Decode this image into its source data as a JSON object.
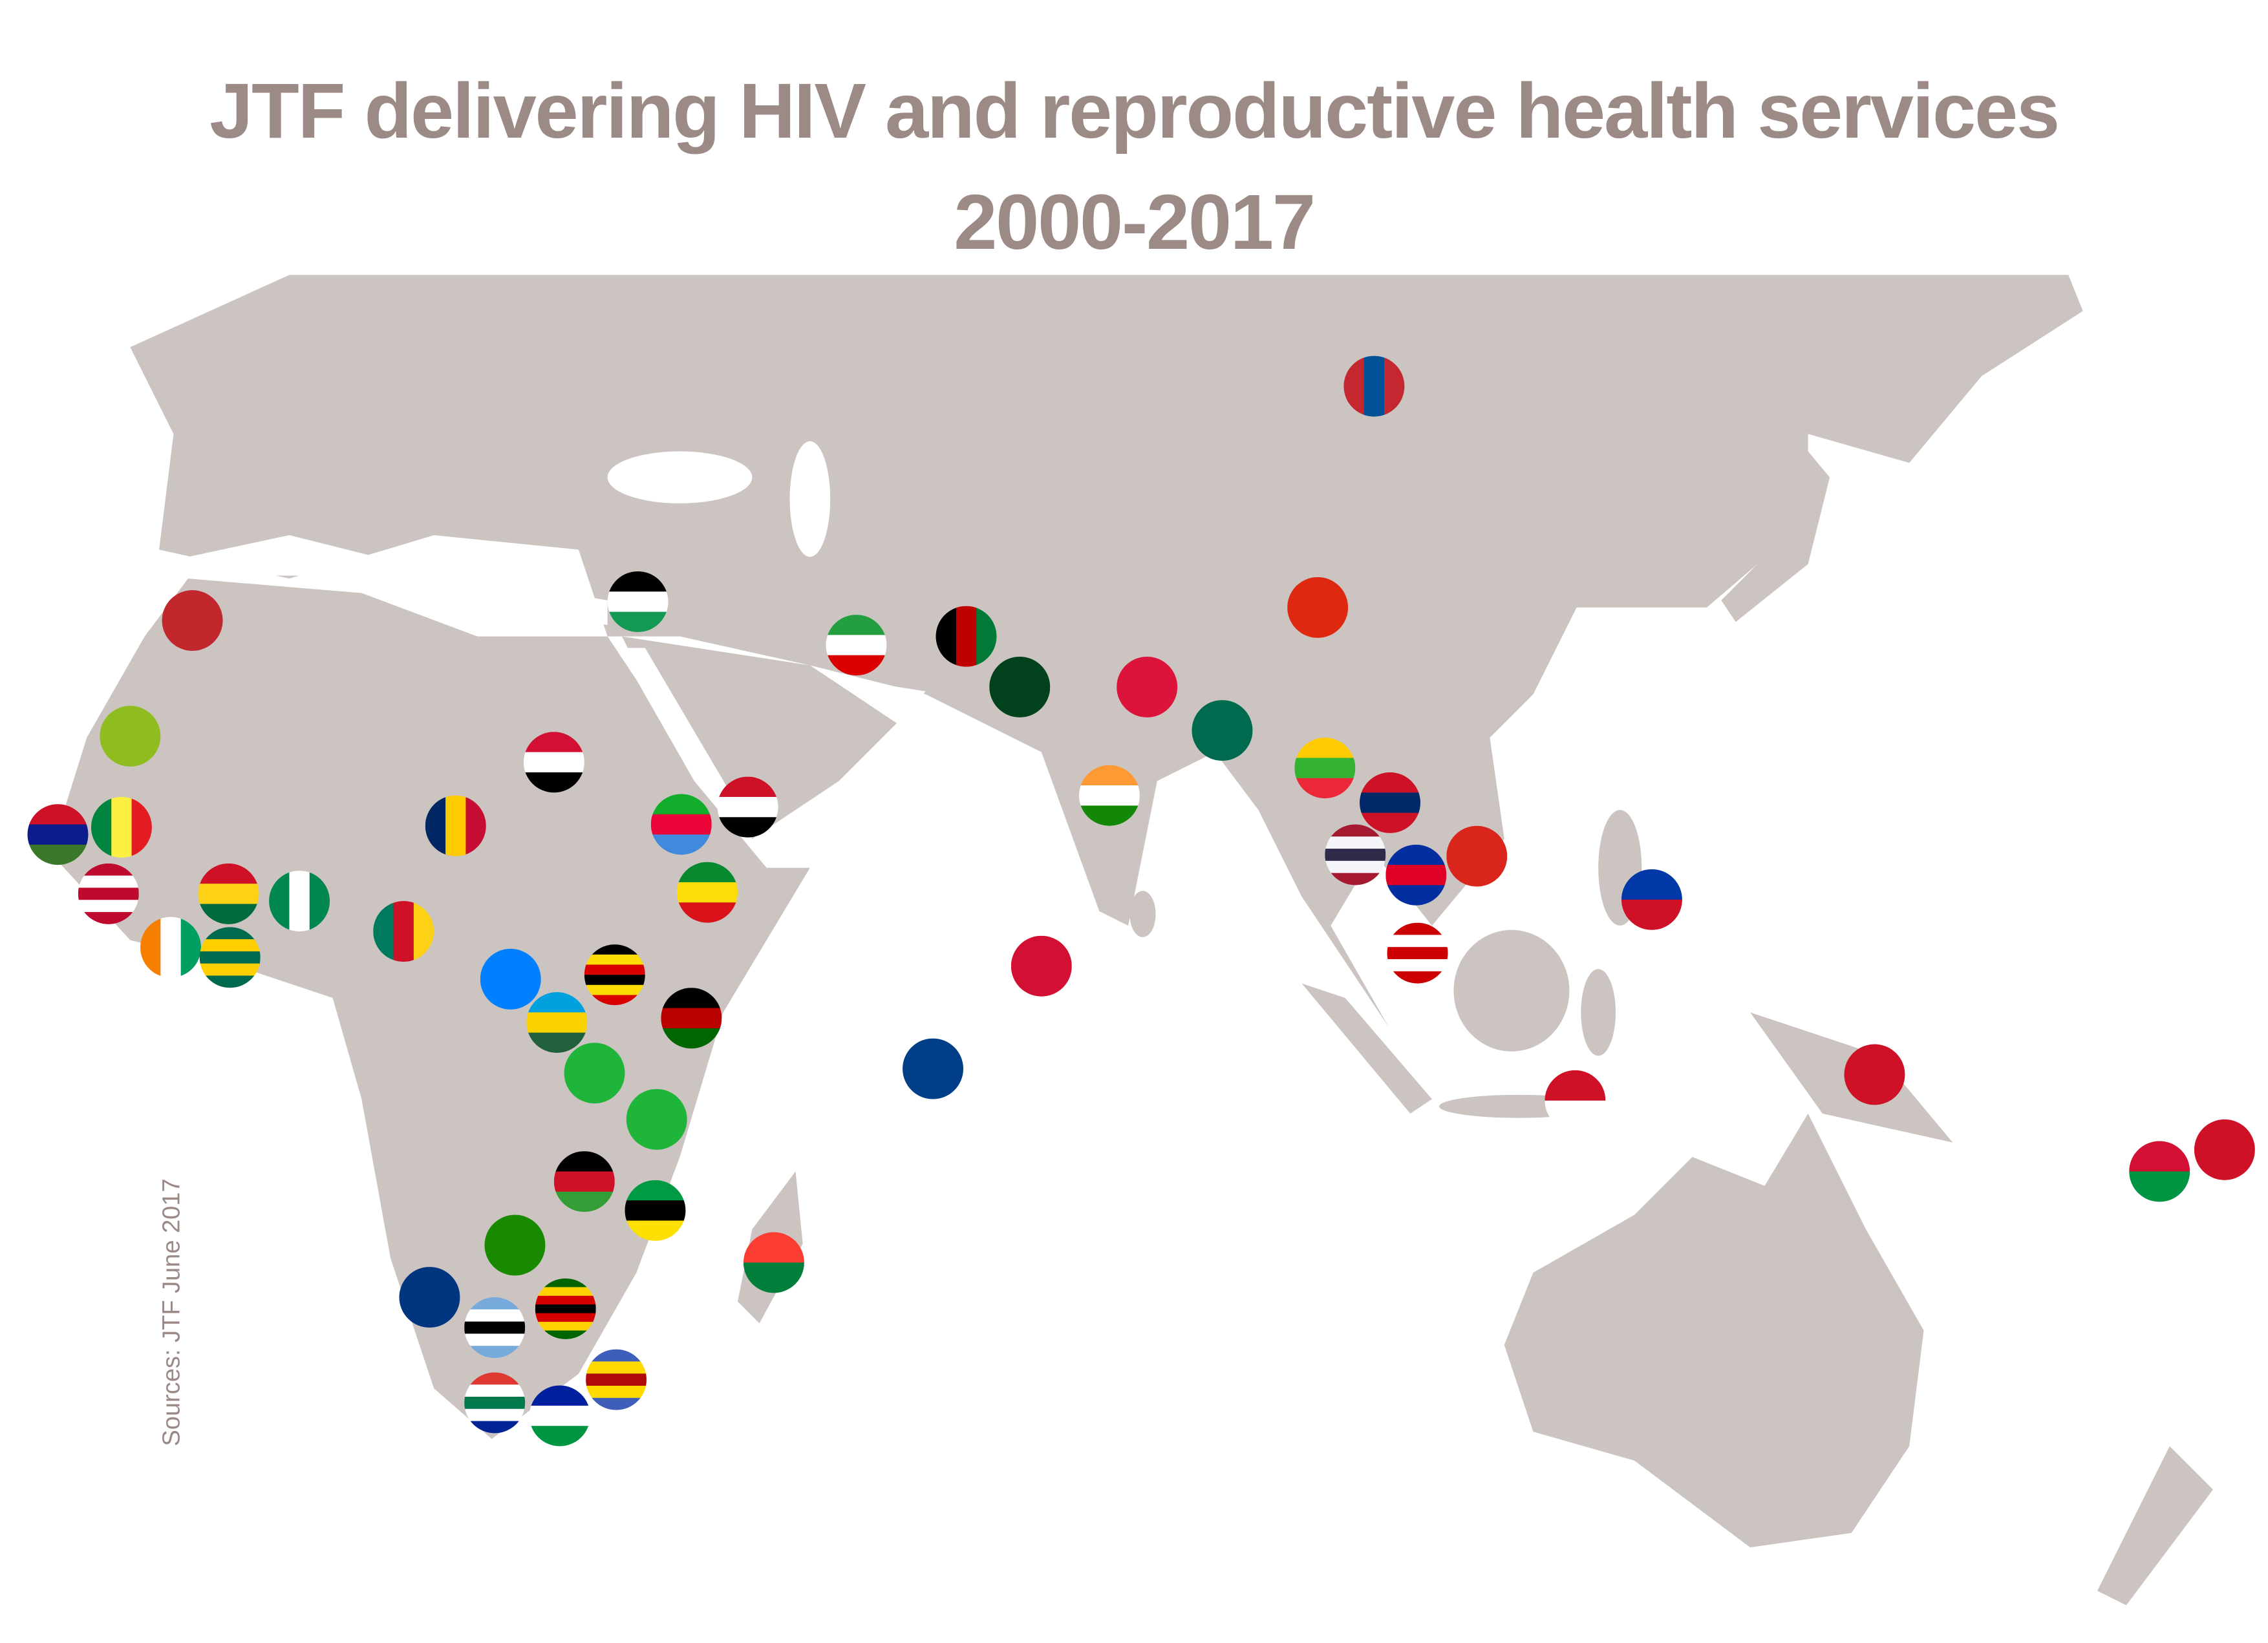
{
  "header": {
    "title": [
      "JTF delivering HIV and reproductive health services",
      "2000-2017"
    ]
  },
  "footer": {
    "source": "Sources: JTF June 2017"
  }
}
